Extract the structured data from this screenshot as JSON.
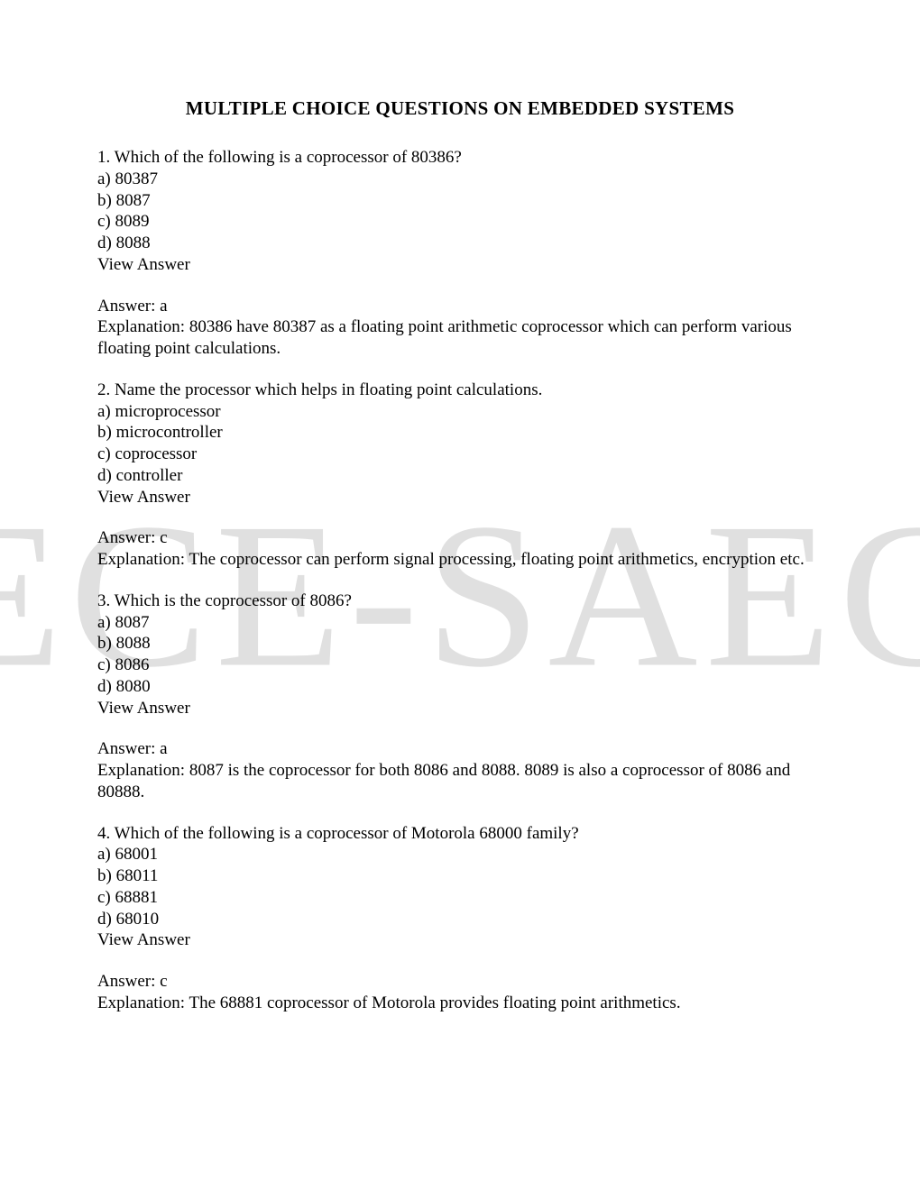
{
  "title": "MULTIPLE CHOICE QUESTIONS ON EMBEDDED SYSTEMS",
  "watermark": "ECE-SAEC",
  "questions": [
    {
      "q": "1. Which of the following is a coprocessor of 80386?",
      "a": "a) 80387",
      "b": "b) 8087",
      "c": "c) 8089",
      "d": "d) 8088",
      "view": "View Answer",
      "ans": "Answer: a",
      "exp": "Explanation: 80386 have 80387 as a floating point arithmetic coprocessor which can perform various floating point calculations."
    },
    {
      "q": "2. Name the processor which helps in floating point calculations.",
      "a": "a) microprocessor",
      "b": "b) microcontroller",
      "c": "c) coprocessor",
      "d": "d) controller",
      "view": "View Answer",
      "ans": "Answer: c",
      "exp": "Explanation: The coprocessor can perform signal processing, floating point arithmetics, encryption etc."
    },
    {
      "q": "3. Which is the coprocessor of 8086?",
      "a": "a) 8087",
      "b": "b) 8088",
      "c": "c) 8086",
      "d": "d) 8080",
      "view": "View Answer",
      "ans": "Answer: a",
      "exp": "Explanation: 8087 is the coprocessor for both 8086 and 8088. 8089 is also a coprocessor of 8086 and 80888."
    },
    {
      "q": "4. Which of the following is a coprocessor of Motorola 68000 family?",
      "a": "a) 68001",
      "b": "b) 68011",
      "c": "c) 68881",
      "d": "d) 68010",
      "view": "View Answer",
      "ans": "Answer: c",
      "exp": "Explanation: The 68881 coprocessor of Motorola provides floating point arithmetics."
    }
  ]
}
